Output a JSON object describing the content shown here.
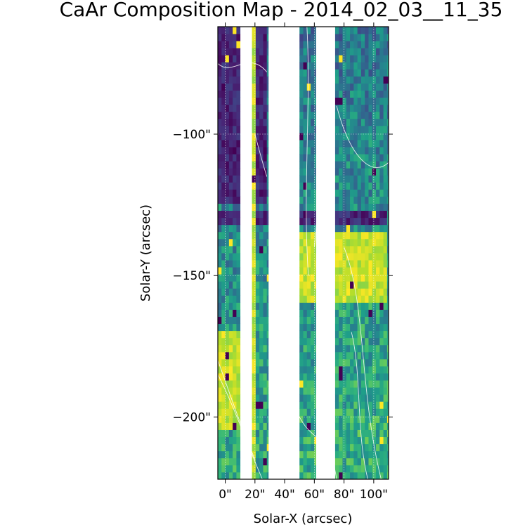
{
  "chart_data": {
    "type": "heatmap",
    "title": "CaAr Composition Map - 2014_02_03__11_35",
    "xlabel": "Solar-X (arcsec)",
    "ylabel": "Solar-Y (arcsec)",
    "xlim": [
      -5,
      110
    ],
    "ylim": [
      -222,
      -62
    ],
    "x_ticks": [
      {
        "value": 0,
        "label": "0\""
      },
      {
        "value": 20,
        "label": "20\""
      },
      {
        "value": 40,
        "label": "40\""
      },
      {
        "value": 60,
        "label": "60\""
      },
      {
        "value": 80,
        "label": "80\""
      },
      {
        "value": 100,
        "label": "100\""
      }
    ],
    "y_ticks": [
      {
        "value": -100,
        "label": "−100\""
      },
      {
        "value": -150,
        "label": "−150\""
      },
      {
        "value": -200,
        "label": "−200\""
      }
    ],
    "grid": true,
    "colormap": "viridis",
    "colors": {
      "low": "#440154",
      "mid": "#21908d",
      "high": "#fde725",
      "contour": "#ffffff"
    },
    "data_columns": [
      {
        "x_range": [
          -5,
          10
        ]
      },
      {
        "x_range": [
          18,
          29
        ]
      },
      {
        "x_range": [
          50,
          61
        ]
      },
      {
        "x_range": [
          74,
          110
        ]
      }
    ],
    "regions": [
      {
        "name": "dark upper-left",
        "x_range": [
          -5,
          29
        ],
        "y_range": [
          -125,
          -62
        ],
        "level": "low"
      },
      {
        "name": "dark band",
        "x_range": [
          -5,
          110
        ],
        "y_range": [
          -133,
          -126
        ],
        "level": "low"
      },
      {
        "name": "bright lower-left",
        "x_range": [
          -5,
          10
        ],
        "y_range": [
          -205,
          -170
        ],
        "level": "high"
      },
      {
        "name": "bright middle",
        "x_range": [
          50,
          110
        ],
        "y_range": [
          -160,
          -135
        ],
        "level": "high"
      },
      {
        "name": "bright stripe",
        "x_range": [
          18,
          20
        ],
        "y_range": [
          -222,
          -62
        ],
        "level": "high"
      }
    ]
  }
}
